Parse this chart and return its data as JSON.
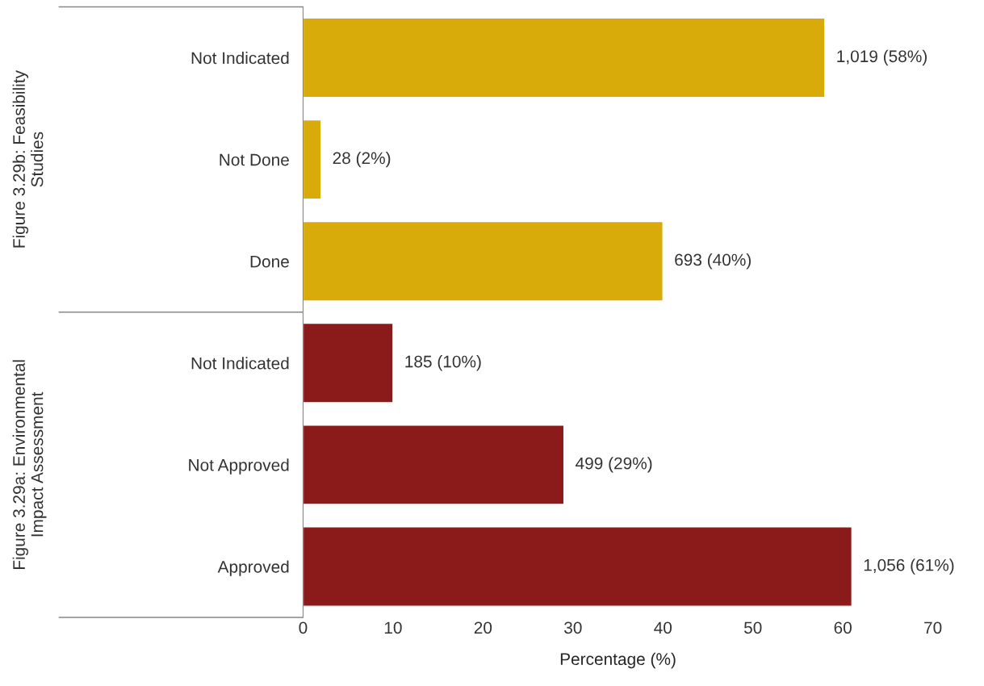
{
  "chart_data": {
    "type": "bar",
    "orientation": "horizontal",
    "xlabel": "Percentage (%)",
    "categories": [
      "Not Indicated",
      "Not Done",
      "Done",
      "Not Indicated",
      "Not Approved",
      "Approved"
    ],
    "values": [
      58,
      2,
      40,
      10,
      29,
      61
    ],
    "colors": [
      "#d9ab0a",
      "#d9ab0a",
      "#d9ab0a",
      "#8b1a1a",
      "#8b1a1a",
      "#8b1a1a"
    ],
    "value_labels": [
      "1,019 (58%)",
      "28 (2%)",
      "693 (40%)",
      "185 (10%)",
      "499 (29%)",
      "1,056 (61%)"
    ],
    "annotations": [
      "Figure 3.29b: Feasibility\nStudies",
      "Figure 3.29a: Environmental\nImpact Assessment"
    ],
    "xlim": [
      0,
      70
    ],
    "xticks": [
      0,
      10,
      20,
      30,
      40,
      50,
      60,
      70
    ],
    "grid": false,
    "legend": false
  }
}
